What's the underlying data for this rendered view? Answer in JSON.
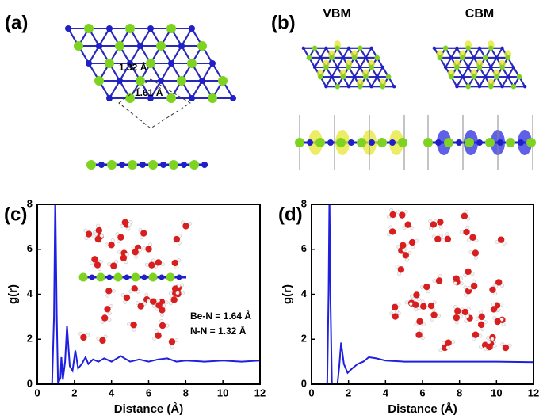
{
  "panels": {
    "a": {
      "label": "(a)",
      "annotations": [
        "1.32 Å",
        "1.61 Å"
      ]
    },
    "b": {
      "label": "(b)",
      "headers": [
        "VBM",
        "CBM"
      ]
    }
  },
  "chart_data": [
    {
      "type": "line",
      "panel": "(c)",
      "xlabel": "Distance (Å)",
      "ylabel": "g(r)",
      "annotations": [
        "Be-N = 1.64 Å",
        "N-N  = 1.32 Å"
      ],
      "xlim": [
        0,
        12
      ],
      "ylim": [
        0,
        8
      ],
      "xticks": [
        0,
        2,
        4,
        6,
        8,
        10,
        12
      ],
      "yticks": [
        0,
        2,
        4,
        6,
        8
      ],
      "series": [
        {
          "name": "g(r)",
          "color": "#1f1fe0",
          "x": [
            0,
            0.8,
            0.9,
            0.97,
            1.05,
            1.12,
            1.25,
            1.3,
            1.38,
            1.5,
            1.6,
            1.75,
            1.9,
            2.05,
            2.2,
            2.4,
            2.6,
            2.75,
            3.0,
            3.3,
            3.6,
            4.0,
            4.5,
            5.0,
            5.5,
            6.0,
            6.5,
            7.0,
            7.5,
            8.0,
            9.0,
            10.0,
            11.0,
            12.0
          ],
          "values": [
            0,
            0,
            3,
            8.5,
            3,
            0,
            0.3,
            1.2,
            0.2,
            1,
            2.6,
            0.8,
            0.6,
            1.5,
            0.7,
            0.9,
            1.2,
            0.9,
            1.1,
            1.0,
            1.15,
            1.0,
            1.25,
            1.0,
            1.1,
            1.0,
            1.1,
            1.15,
            1.0,
            1.05,
            1.0,
            1.05,
            1.0,
            1.05
          ]
        }
      ]
    },
    {
      "type": "line",
      "panel": "(d)",
      "xlabel": "Distance (Å)",
      "ylabel": "g(r)",
      "xlim": [
        0,
        12
      ],
      "ylim": [
        0,
        8
      ],
      "xticks": [
        0,
        2,
        4,
        6,
        8,
        10,
        12
      ],
      "yticks": [
        0,
        2,
        4,
        6,
        8
      ],
      "series": [
        {
          "name": "g(r)",
          "color": "#1f1fe0",
          "x": [
            0,
            0.85,
            0.92,
            0.97,
            1.02,
            1.1,
            1.4,
            1.5,
            1.6,
            1.75,
            1.95,
            2.2,
            2.5,
            2.8,
            3.1,
            3.5,
            4.0,
            5.0,
            6.0,
            8.0,
            10.0,
            12.0
          ],
          "values": [
            0,
            0,
            4,
            8.5,
            4,
            0,
            0,
            0.8,
            1.85,
            0.9,
            0.5,
            0.7,
            0.9,
            1.0,
            1.2,
            1.15,
            1.05,
            1.0,
            1.0,
            1.0,
            1.0,
            0.98
          ]
        }
      ]
    }
  ]
}
